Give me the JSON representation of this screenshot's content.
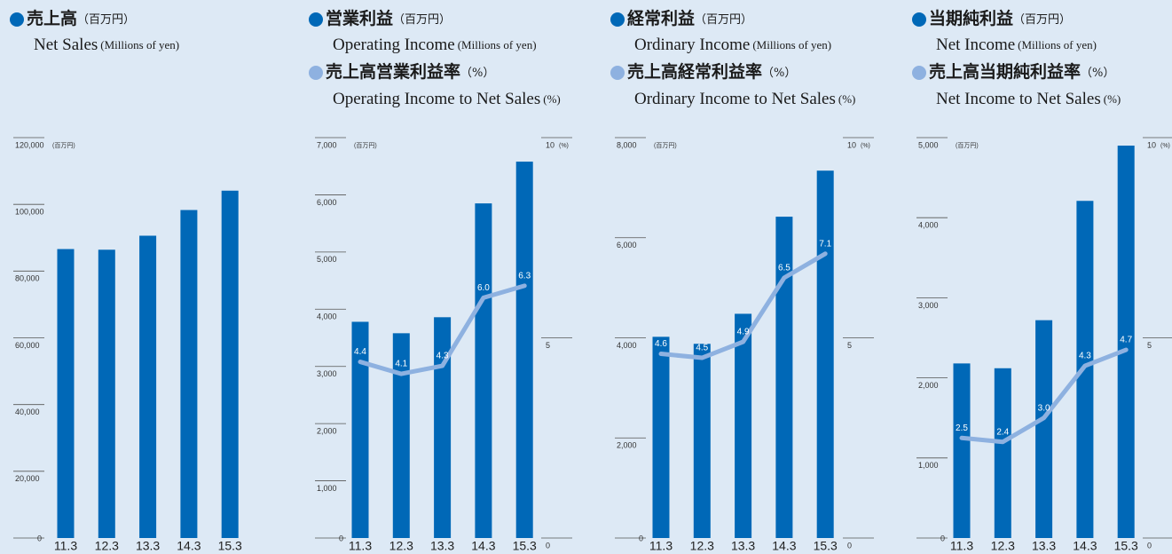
{
  "chart_data": [
    {
      "type": "bar",
      "categories": [
        "11.3",
        "12.3",
        "13.3",
        "14.3",
        "15.3"
      ],
      "series": [
        {
          "name": "売上高",
          "name_unit": "（百万円）",
          "name_en": "Net Sales",
          "name_en_unit": "(Millions of yen)",
          "color": "#0068b7",
          "values": [
            86600,
            86400,
            90600,
            98300,
            104100
          ]
        }
      ],
      "ylim": [
        0,
        120000
      ],
      "yticks": [
        0,
        {
          "value": 20000,
          "label": "20,000"
        },
        {
          "value": 40000,
          "label": "40,000"
        },
        {
          "value": 60000,
          "label": "60,000"
        },
        {
          "value": 80000,
          "label": "80,000"
        },
        {
          "value": 100000,
          "label": "100,000"
        },
        {
          "value": 120000,
          "label": "120,000"
        }
      ],
      "y_unit": "(百万円)"
    },
    {
      "type": "combo",
      "categories": [
        "11.3",
        "12.3",
        "13.3",
        "14.3",
        "15.3"
      ],
      "series": [
        {
          "name": "営業利益",
          "name_unit": "（百万円）",
          "name_en": "Operating Income",
          "name_en_unit": "(Millions of yen)",
          "color": "#0068b7",
          "values": [
            3780,
            3580,
            3860,
            5850,
            6580
          ]
        },
        {
          "name": "売上高営業利益率",
          "name_unit": "（%）",
          "name_en": "Operating Income to Net Sales",
          "name_en_unit": "(%)",
          "color": "#8eb1e0",
          "axis": "y2",
          "values": [
            4.4,
            4.1,
            4.3,
            6.0,
            6.3
          ],
          "value_labels": [
            "4.4",
            "4.1",
            "4.3",
            "6.0",
            "6.3"
          ]
        }
      ],
      "ylim": [
        0,
        7000
      ],
      "yticks": [
        0,
        {
          "value": 1000,
          "label": "1,000"
        },
        {
          "value": 2000,
          "label": "2,000"
        },
        {
          "value": 3000,
          "label": "3,000"
        },
        {
          "value": 4000,
          "label": "4,000"
        },
        {
          "value": 5000,
          "label": "5,000"
        },
        {
          "value": 6000,
          "label": "6,000"
        },
        {
          "value": 7000,
          "label": "7,000"
        }
      ],
      "y_unit": "(百万円)",
      "y2lim": [
        0,
        10
      ],
      "y2ticks": [
        0,
        5,
        10
      ],
      "y2_unit": "(%)"
    },
    {
      "type": "combo",
      "categories": [
        "11.3",
        "12.3",
        "13.3",
        "14.3",
        "15.3"
      ],
      "series": [
        {
          "name": "経常利益",
          "name_unit": "（百万円）",
          "name_en": "Ordinary Income",
          "name_en_unit": "(Millions of yen)",
          "color": "#0068b7",
          "values": [
            4020,
            3880,
            4480,
            6420,
            7340
          ]
        },
        {
          "name": "売上高経常利益率",
          "name_unit": "（%）",
          "name_en": "Ordinary Income to Net Sales",
          "name_en_unit": "(%)",
          "color": "#8eb1e0",
          "axis": "y2",
          "values": [
            4.6,
            4.5,
            4.9,
            6.5,
            7.1
          ]
        }
      ],
      "ylim": [
        0,
        8000
      ],
      "yticks": [
        0,
        {
          "value": 2000,
          "label": "2,000"
        },
        {
          "value": 4000,
          "label": "4,000"
        },
        {
          "value": 6000,
          "label": "6,000"
        },
        {
          "value": 8000,
          "label": "8,000"
        }
      ],
      "y_unit": "(百万円)",
      "y2lim": [
        0,
        10
      ],
      "y2ticks": [
        0,
        5,
        10
      ],
      "y2_unit": "(%)"
    },
    {
      "type": "combo",
      "categories": [
        "11.3",
        "12.3",
        "13.3",
        "14.3",
        "15.3"
      ],
      "series": [
        {
          "name": "当期純利益",
          "name_unit": "（百万円）",
          "name_en": "Net Income",
          "name_en_unit": "(Millions of yen)",
          "color": "#0068b7",
          "values": [
            2180,
            2120,
            2720,
            4210,
            4900
          ]
        },
        {
          "name": "売上高当期純利益率",
          "name_unit": "（%）",
          "name_en": "Net Income to Net Sales",
          "name_en_unit": "(%)",
          "color": "#8eb1e0",
          "axis": "y2",
          "values": [
            2.5,
            2.4,
            3.0,
            4.3,
            4.7
          ],
          "value_labels": [
            "2.5",
            "2.4",
            "3.0",
            "4.3",
            "4.7"
          ]
        }
      ],
      "ylim": [
        0,
        5000
      ],
      "yticks": [
        0,
        {
          "value": 1000,
          "label": "1,000"
        },
        {
          "value": 2000,
          "label": "2,000"
        },
        {
          "value": 3000,
          "label": "3,000"
        },
        {
          "value": 4000,
          "label": "4,000"
        },
        {
          "value": 5000,
          "label": "5,000"
        }
      ],
      "y_unit": "(百万円)",
      "y2lim": [
        0,
        10
      ],
      "y2ticks": [
        0,
        5,
        10
      ],
      "y2_unit": "(%)"
    }
  ]
}
